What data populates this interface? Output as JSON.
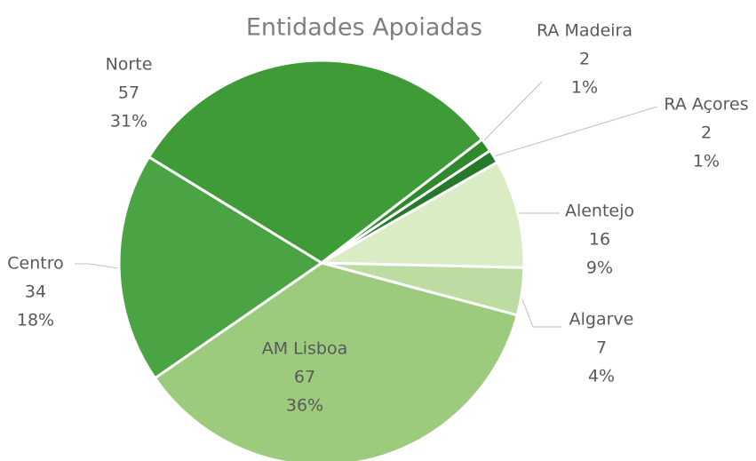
{
  "chart_data": {
    "type": "pie",
    "title": "Entidades Apoiadas",
    "categories": [
      "Norte",
      "RA Madeira",
      "RA Açores",
      "Alentejo",
      "Algarve",
      "AM Lisboa",
      "Centro"
    ],
    "values": [
      57,
      2,
      2,
      16,
      7,
      67,
      34
    ],
    "percent_labels": [
      "31%",
      "1%",
      "1%",
      "9%",
      "4%",
      "36%",
      "18%"
    ],
    "colors": [
      "#3f9a38",
      "#2f8a2c",
      "#26782a",
      "#d9ecc4",
      "#bcdca2",
      "#9ccb7e",
      "#4aa443"
    ]
  }
}
